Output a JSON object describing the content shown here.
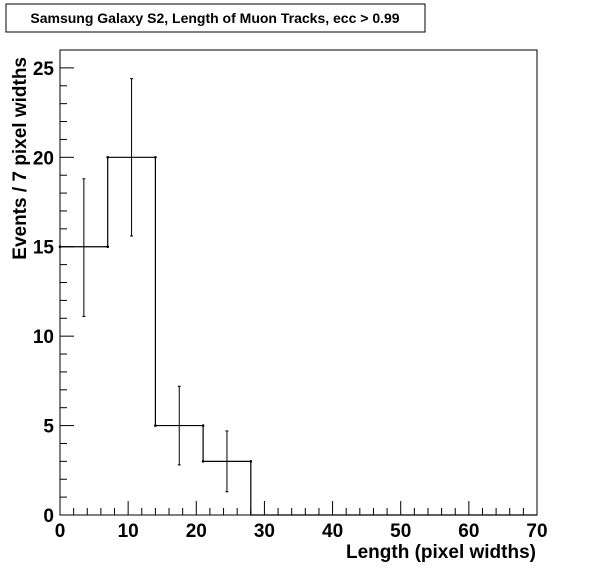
{
  "chart_data": {
    "type": "histogram",
    "title": "Samsung Galaxy S2, Length of Muon Tracks, ecc > 0.99",
    "xlabel": "Length (pixel widths)",
    "ylabel": "Events / 7 pixel widths",
    "xlim": [
      0,
      70
    ],
    "ylim": [
      0,
      26
    ],
    "x_ticks": [
      0,
      10,
      20,
      30,
      40,
      50,
      60,
      70
    ],
    "y_ticks": [
      0,
      5,
      10,
      15,
      20,
      25
    ],
    "bin_width": 7,
    "bins": [
      {
        "x_low": 0,
        "x_high": 7,
        "value": 15,
        "err_low": 11.1,
        "err_high": 18.8
      },
      {
        "x_low": 7,
        "x_high": 14,
        "value": 20,
        "err_low": 15.6,
        "err_high": 24.4
      },
      {
        "x_low": 14,
        "x_high": 21,
        "value": 5,
        "err_low": 2.8,
        "err_high": 7.2
      },
      {
        "x_low": 21,
        "x_high": 28,
        "value": 3,
        "err_low": 1.3,
        "err_high": 4.7
      },
      {
        "x_low": 28,
        "x_high": 35,
        "value": 0
      },
      {
        "x_low": 35,
        "x_high": 42,
        "value": 0
      },
      {
        "x_low": 42,
        "x_high": 49,
        "value": 0
      },
      {
        "x_low": 49,
        "x_high": 56,
        "value": 0
      },
      {
        "x_low": 56,
        "x_high": 63,
        "value": 0
      },
      {
        "x_low": 63,
        "x_high": 70,
        "value": 0
      }
    ],
    "grid": false,
    "line_color": "#000000"
  }
}
